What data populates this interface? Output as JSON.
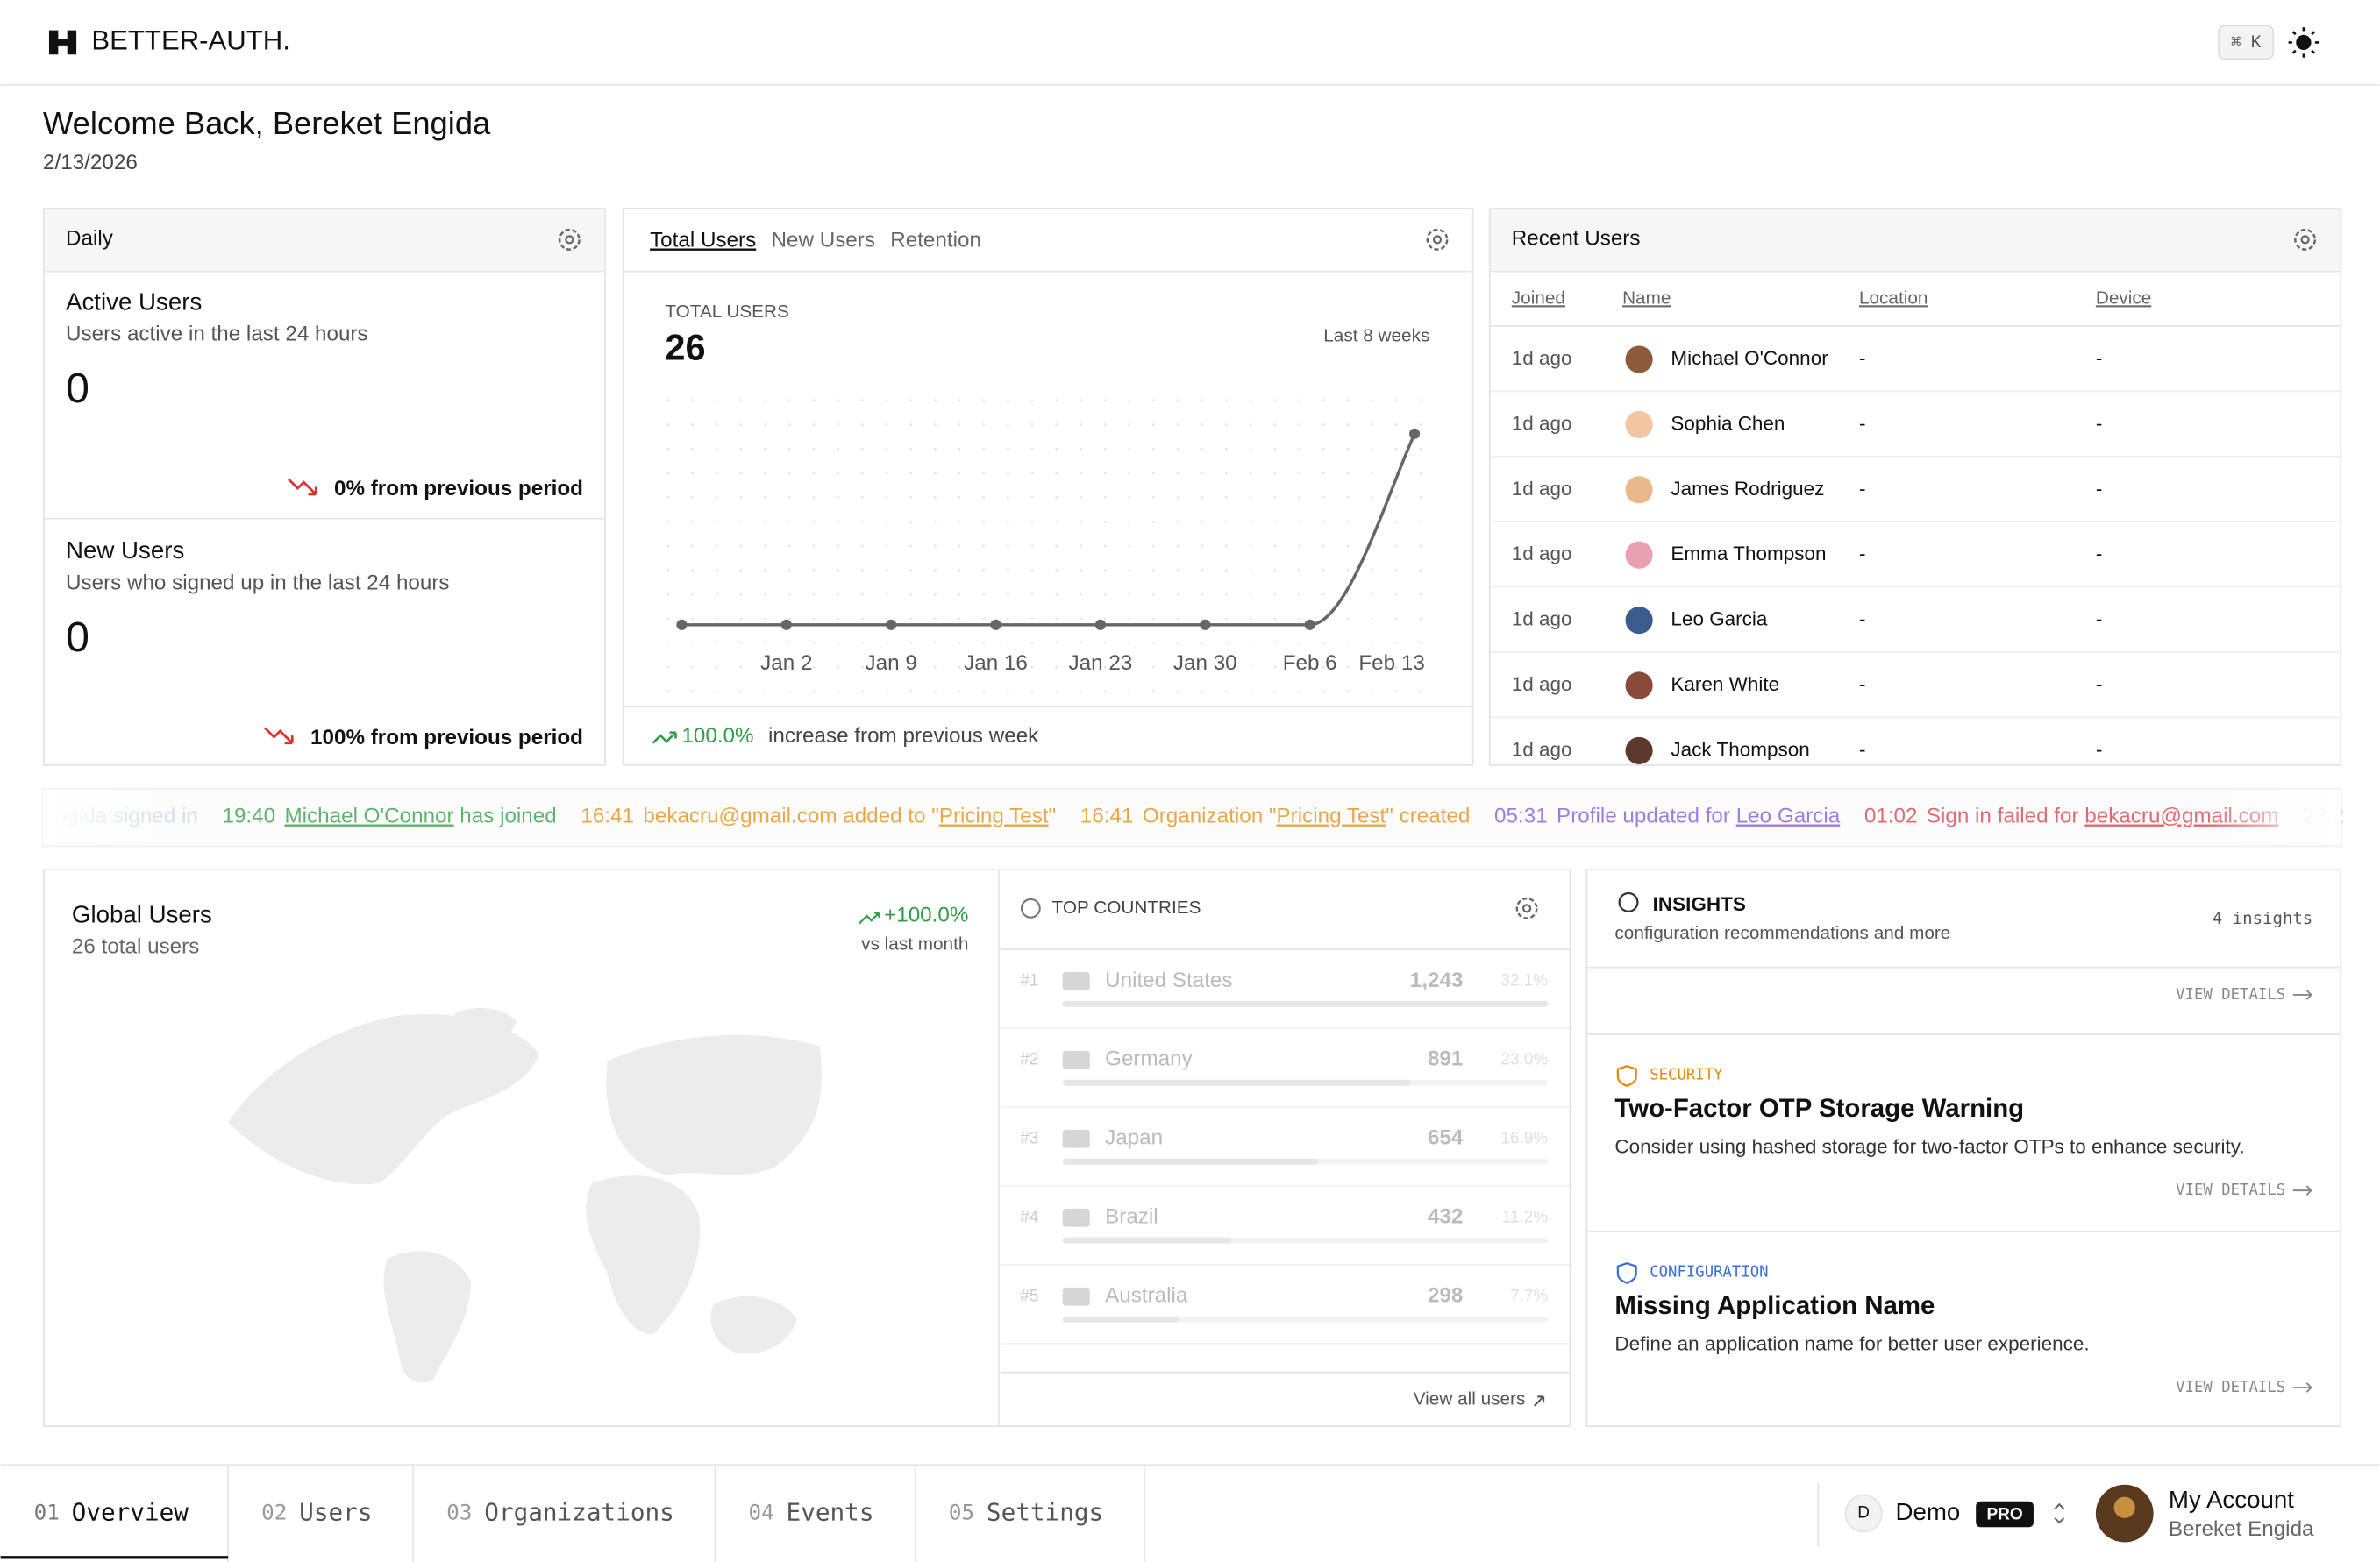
{
  "header": {
    "brand": "BETTER-AUTH.",
    "shortcut": "⌘ K"
  },
  "welcome": {
    "title": "Welcome Back, Bereket Engida",
    "date": "2/13/2026"
  },
  "daily": {
    "title": "Daily",
    "cards": [
      {
        "title": "Active Users",
        "subtitle": "Users active in the last 24 hours",
        "value": 0,
        "change": "0% from previous period"
      },
      {
        "title": "New Users",
        "subtitle": "Users who signed up in the last 24 hours",
        "value": 0,
        "change": "100% from previous period"
      }
    ]
  },
  "users_panel": {
    "tabs": [
      "Total Users",
      "New Users",
      "Retention"
    ],
    "label": "TOTAL USERS",
    "total": 26,
    "range": "Last 8 weeks",
    "change": "100.0%",
    "change_text": "increase from previous week"
  },
  "chart_data": {
    "type": "line",
    "categories": [
      null,
      "Jan 2",
      "Jan 9",
      "Jan 16",
      "Jan 23",
      "Jan 30",
      "Feb 6",
      "Feb 13"
    ],
    "values": [
      0,
      0,
      0,
      0,
      0,
      0,
      0,
      26
    ],
    "color": "#666666",
    "ylim": [
      0,
      26
    ]
  },
  "recent_users": {
    "title": "Recent Users",
    "columns": [
      "Joined",
      "Name",
      "Location",
      "Device"
    ],
    "rows": [
      [
        "1d ago",
        "Michael O'Connor",
        "-",
        "-"
      ],
      [
        "1d ago",
        "Sophia Chen",
        "-",
        "-"
      ],
      [
        "1d ago",
        "James Rodriguez",
        "-",
        "-"
      ],
      [
        "1d ago",
        "Emma Thompson",
        "-",
        "-"
      ],
      [
        "1d ago",
        "Leo Garcia",
        "-",
        "-"
      ],
      [
        "1d ago",
        "Karen White",
        "-",
        "-"
      ],
      [
        "1d ago",
        "Jack Thompson",
        "-",
        "-"
      ]
    ]
  },
  "activity": [
    {
      "time": "",
      "before": "ngida signed in",
      "link": "",
      "after": "",
      "color": "#9ab8d8",
      "faded": true
    },
    {
      "time": "19:40",
      "before": "",
      "link": "Michael O'Connor",
      "after": " has joined",
      "color": "#5fb36f",
      "faded": false
    },
    {
      "time": "16:41",
      "before": "bekacru@gmail.com added to \"",
      "link": "Pricing Test",
      "after": "\"",
      "color": "#e8a74a",
      "faded": false
    },
    {
      "time": "16:41",
      "before": "Organization \"",
      "link": "Pricing Test",
      "after": "\" created",
      "color": "#e8a74a",
      "faded": false
    },
    {
      "time": "05:31",
      "before": "Profile updated for ",
      "link": "Leo Garcia",
      "after": "",
      "color": "#9b7fe0",
      "faded": false
    },
    {
      "time": "01:02",
      "before": "Sign in failed for ",
      "link": "bekacru@gmail.com",
      "after": "",
      "color": "#e06a72",
      "faded": false
    },
    {
      "time": "23:2",
      "before": "",
      "link": "",
      "after": "",
      "color": "#e8a74a",
      "faded": true
    }
  ],
  "global_users": {
    "title": "Global Users",
    "subtitle": "26 total users",
    "change": "+100.0%",
    "change_note": "vs last month"
  },
  "countries": {
    "title": "TOP COUNTRIES",
    "footer": "View all users",
    "rows": [
      {
        "rank": "#1",
        "name": "United States",
        "users": {
          "value": 1243,
          "label": "1,243"
        },
        "share": "32.1%"
      },
      {
        "rank": "#2",
        "name": "Germany",
        "users": {
          "value": 891,
          "label": "891"
        },
        "share": "23.0%"
      },
      {
        "rank": "#3",
        "name": "Japan",
        "users": {
          "value": 654,
          "label": "654"
        },
        "share": "16.9%"
      },
      {
        "rank": "#4",
        "name": "Brazil",
        "users": {
          "value": 432,
          "label": "432"
        },
        "share": "11.2%"
      },
      {
        "rank": "#5",
        "name": "Australia",
        "users": {
          "value": 298,
          "label": "298"
        },
        "share": "7.7%"
      }
    ]
  },
  "insights": {
    "title": "INSIGHTS",
    "subtitle": "configuration recommendations and more",
    "count": "4 insights",
    "link": "VIEW DETAILS",
    "items": [
      {
        "tag": "SECURITY",
        "title": "Two-Factor OTP Storage Warning",
        "text": "Consider using hashed storage for two-factor OTPs to enhance security."
      },
      {
        "tag": "CONFIGURATION",
        "title": "Missing Application Name",
        "text": "Define an application name for better user experience."
      }
    ]
  },
  "nav": {
    "tabs": [
      {
        "num": "01",
        "label": "Overview"
      },
      {
        "num": "02",
        "label": "Users"
      },
      {
        "num": "03",
        "label": "Organizations"
      },
      {
        "num": "04",
        "label": "Events"
      },
      {
        "num": "05",
        "label": "Settings"
      }
    ],
    "org_initial": "D",
    "org": "Demo",
    "plan": "PRO",
    "account": "My Account",
    "user": "Bereket Engida"
  }
}
